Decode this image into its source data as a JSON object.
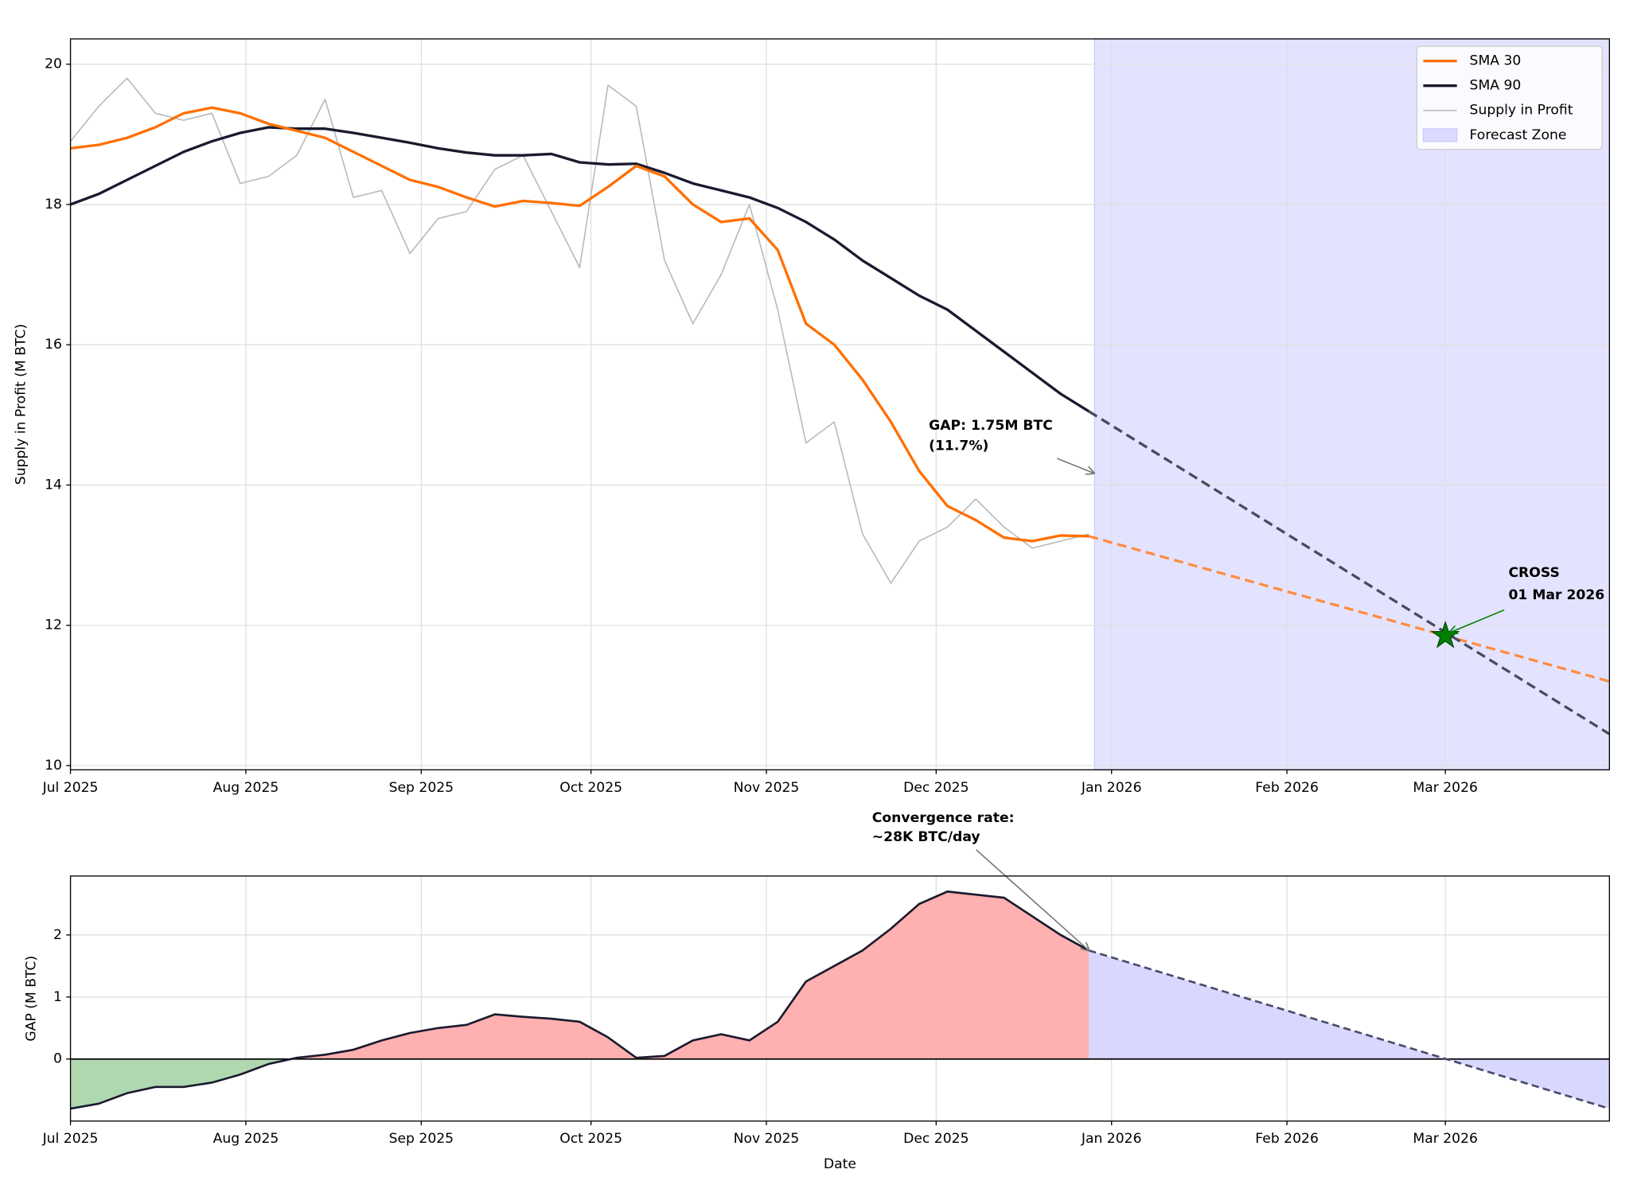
{
  "chart_data": [
    {
      "type": "line",
      "ylabel": "Supply in Profit (M BTC)",
      "xlim": [
        "2025-07-01",
        "2026-03-30"
      ],
      "ylim": [
        9.94,
        20.36
      ],
      "xticks": [
        {
          "value": "2025-07-01",
          "label": "Jul 2025"
        },
        {
          "value": "2025-08-01",
          "label": "Aug 2025"
        },
        {
          "value": "2025-09-01",
          "label": "Sep 2025"
        },
        {
          "value": "2025-10-01",
          "label": "Oct 2025"
        },
        {
          "value": "2025-11-01",
          "label": "Nov 2025"
        },
        {
          "value": "2025-12-01",
          "label": "Dec 2025"
        },
        {
          "value": "2026-01-01",
          "label": "Jan 2026"
        },
        {
          "value": "2026-02-01",
          "label": "Feb 2026"
        },
        {
          "value": "2026-03-01",
          "label": "Mar 2026"
        }
      ],
      "yticks": [
        10,
        12,
        14,
        16,
        18,
        20
      ],
      "grid": true,
      "legend": "upper right",
      "x": [
        "2025-07-01",
        "2025-07-06",
        "2025-07-11",
        "2025-07-16",
        "2025-07-21",
        "2025-07-26",
        "2025-07-31",
        "2025-08-05",
        "2025-08-10",
        "2025-08-15",
        "2025-08-20",
        "2025-08-25",
        "2025-08-30",
        "2025-09-04",
        "2025-09-09",
        "2025-09-14",
        "2025-09-19",
        "2025-09-24",
        "2025-09-29",
        "2025-10-04",
        "2025-10-09",
        "2025-10-14",
        "2025-10-19",
        "2025-10-24",
        "2025-10-29",
        "2025-11-03",
        "2025-11-08",
        "2025-11-13",
        "2025-11-18",
        "2025-11-23",
        "2025-11-28",
        "2025-12-03",
        "2025-12-08",
        "2025-12-13",
        "2025-12-18",
        "2025-12-23",
        "2025-12-28"
      ],
      "series": [
        {
          "name": "SMA 30",
          "color": "#ff6f00",
          "width": 2.5,
          "values": [
            18.8,
            18.85,
            18.95,
            19.1,
            19.3,
            19.38,
            19.3,
            19.15,
            19.05,
            18.95,
            18.75,
            18.55,
            18.35,
            18.25,
            18.1,
            17.97,
            18.05,
            18.02,
            17.98,
            18.25,
            18.55,
            18.4,
            18.0,
            17.75,
            17.8,
            17.35,
            16.3,
            16.0,
            15.5,
            14.9,
            14.2,
            13.7,
            13.5,
            13.25,
            13.2,
            13.28,
            13.27
          ]
        },
        {
          "name": "SMA 90",
          "color": "#1a1a2e",
          "width": 2.5,
          "values": [
            18.0,
            18.15,
            18.35,
            18.55,
            18.75,
            18.9,
            19.02,
            19.1,
            19.08,
            19.08,
            19.02,
            18.95,
            18.88,
            18.8,
            18.74,
            18.7,
            18.7,
            18.72,
            18.6,
            18.57,
            18.58,
            18.45,
            18.3,
            18.2,
            18.1,
            17.95,
            17.75,
            17.5,
            17.2,
            16.95,
            16.7,
            16.5,
            16.2,
            15.9,
            15.6,
            15.3,
            15.05
          ]
        },
        {
          "name": "Supply in Profit",
          "color": "#b8b8b8",
          "width": 1.2,
          "values": [
            18.9,
            19.4,
            19.8,
            19.3,
            19.2,
            19.3,
            18.3,
            18.4,
            18.7,
            19.5,
            18.1,
            18.2,
            17.3,
            17.8,
            17.9,
            18.5,
            18.7,
            17.9,
            17.1,
            19.7,
            19.4,
            17.2,
            16.3,
            17.0,
            18.0,
            16.5,
            14.6,
            14.9,
            13.3,
            12.6,
            13.2,
            13.4,
            13.8,
            13.4,
            13.1,
            13.2,
            13.3
          ]
        }
      ],
      "forecast": {
        "x": [
          "2025-12-28",
          "2026-03-30"
        ],
        "series": [
          {
            "color": "#ff8c42",
            "values": [
              13.27,
              11.2
            ]
          },
          {
            "color": "#4a4a5e",
            "values": [
              15.05,
              10.45
            ]
          }
        ]
      },
      "forecast_zone": {
        "name": "Forecast Zone",
        "color": "#ccccff",
        "x": [
          "2025-12-29",
          "2026-03-30"
        ]
      },
      "cross": {
        "label": "CROSS",
        "date_label": "01 Mar 2026",
        "x": "2026-03-01",
        "y": 11.85,
        "color": "#008000"
      },
      "annotation": [
        "GAP: 1.75M BTC",
        "(11.7%)"
      ]
    },
    {
      "type": "area",
      "ylabel": "GAP (M BTC)",
      "xlabel": "Date",
      "xlim": [
        "2025-07-01",
        "2026-03-30"
      ],
      "ylim": [
        -1.0,
        2.95
      ],
      "xticks": [
        {
          "value": "2025-07-01",
          "label": "Jul 2025"
        },
        {
          "value": "2025-08-01",
          "label": "Aug 2025"
        },
        {
          "value": "2025-09-01",
          "label": "Sep 2025"
        },
        {
          "value": "2025-10-01",
          "label": "Oct 2025"
        },
        {
          "value": "2025-11-01",
          "label": "Nov 2025"
        },
        {
          "value": "2025-12-01",
          "label": "Dec 2025"
        },
        {
          "value": "2026-01-01",
          "label": "Jan 2026"
        },
        {
          "value": "2026-02-01",
          "label": "Feb 2026"
        },
        {
          "value": "2026-03-01",
          "label": "Mar 2026"
        }
      ],
      "yticks": [
        0,
        1,
        2
      ],
      "grid": true,
      "x": [
        "2025-07-01",
        "2025-07-06",
        "2025-07-11",
        "2025-07-16",
        "2025-07-21",
        "2025-07-26",
        "2025-07-31",
        "2025-08-05",
        "2025-08-10",
        "2025-08-15",
        "2025-08-20",
        "2025-08-25",
        "2025-08-30",
        "2025-09-04",
        "2025-09-09",
        "2025-09-14",
        "2025-09-19",
        "2025-09-24",
        "2025-09-29",
        "2025-10-04",
        "2025-10-09",
        "2025-10-14",
        "2025-10-19",
        "2025-10-24",
        "2025-10-29",
        "2025-11-03",
        "2025-11-08",
        "2025-11-13",
        "2025-11-18",
        "2025-11-23",
        "2025-11-28",
        "2025-12-03",
        "2025-12-08",
        "2025-12-13",
        "2025-12-18",
        "2025-12-23",
        "2025-12-28"
      ],
      "values": [
        -0.8,
        -0.72,
        -0.55,
        -0.45,
        -0.45,
        -0.38,
        -0.25,
        -0.08,
        0.02,
        0.07,
        0.15,
        0.3,
        0.42,
        0.5,
        0.55,
        0.72,
        0.68,
        0.65,
        0.6,
        0.35,
        0.02,
        0.05,
        0.3,
        0.4,
        0.3,
        0.6,
        1.25,
        1.5,
        1.75,
        2.1,
        2.5,
        2.7,
        2.65,
        2.6,
        2.3,
        2.0,
        1.75
      ],
      "line_color": "#1a1a2e",
      "positive_color": "#ffb0b0",
      "negative_color": "#b0d8b0",
      "forecast": {
        "x": [
          "2025-12-28",
          "2026-03-30"
        ],
        "values": [
          1.75,
          -0.8
        ],
        "color": "#4a4a6a",
        "fill": "#d8d8ff"
      },
      "annotation": [
        "Convergence rate:",
        "~28K BTC/day"
      ]
    }
  ]
}
